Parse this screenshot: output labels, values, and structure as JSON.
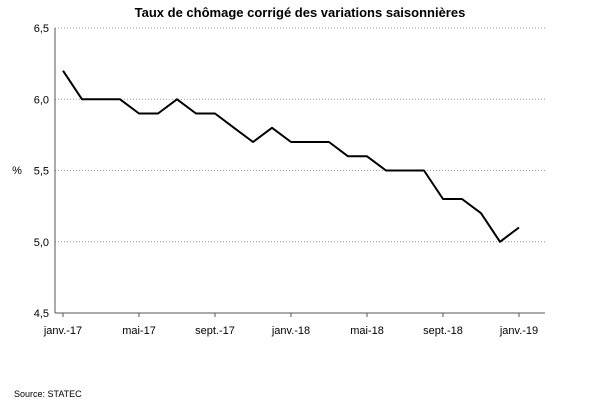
{
  "chart_data": {
    "type": "line",
    "title": "Taux de chômage corrigé des variations saisonnières",
    "ylabel": "%",
    "xlabel": "",
    "source": "Source: STATEC",
    "ylim": [
      4.5,
      6.5
    ],
    "yticks": [
      "4,5",
      "5,0",
      "5,5",
      "6,0",
      "6,5"
    ],
    "ytick_values": [
      4.5,
      5.0,
      5.5,
      6.0,
      6.5
    ],
    "xticks": [
      "janv.-17",
      "mai-17",
      "sept.-17",
      "janv.-18",
      "mai-18",
      "sept.-18",
      "janv.-19"
    ],
    "xtick_months": [
      0,
      4,
      8,
      12,
      16,
      20,
      24
    ],
    "grid": "horizontal dotted",
    "legend": "none",
    "colors": {
      "line": "#000000",
      "grid": "#9a9a9a",
      "axis": "#555555"
    },
    "series": [
      {
        "x": [
          "janv.-17",
          "févr.-17",
          "mars-17",
          "avr.-17",
          "mai-17",
          "juin-17",
          "juil.-17",
          "août-17",
          "sept.-17",
          "oct.-17",
          "nov.-17",
          "déc.-17",
          "janv.-18",
          "févr.-18",
          "mars-18",
          "avr.-18",
          "mai-18",
          "juin-18",
          "juil.-18",
          "août-18",
          "sept.-18",
          "oct.-18",
          "nov.-18",
          "déc.-18",
          "janv.-19"
        ],
        "values": [
          6.2,
          6.0,
          6.0,
          6.0,
          5.9,
          5.9,
          6.0,
          5.9,
          5.9,
          5.8,
          5.7,
          5.8,
          5.7,
          5.7,
          5.7,
          5.6,
          5.6,
          5.5,
          5.5,
          5.5,
          5.3,
          5.3,
          5.2,
          5.0,
          5.1
        ]
      }
    ]
  }
}
